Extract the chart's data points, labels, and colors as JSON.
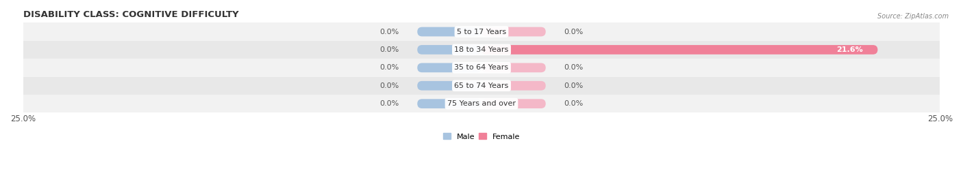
{
  "title": "DISABILITY CLASS: COGNITIVE DIFFICULTY",
  "source": "Source: ZipAtlas.com",
  "categories": [
    "5 to 17 Years",
    "18 to 34 Years",
    "35 to 64 Years",
    "65 to 74 Years",
    "75 Years and over"
  ],
  "male_values": [
    0.0,
    0.0,
    0.0,
    0.0,
    0.0
  ],
  "female_values": [
    0.0,
    21.6,
    0.0,
    0.0,
    0.0
  ],
  "xlim": 25.0,
  "male_color": "#a8c4e0",
  "female_color": "#f08098",
  "female_color_light": "#f4b8c8",
  "row_bg_light": "#f2f2f2",
  "row_bg_dark": "#e8e8e8",
  "bar_height": 0.52,
  "title_fontsize": 9.5,
  "label_fontsize": 8,
  "tick_fontsize": 8.5,
  "legend_male": "Male",
  "legend_female": "Female",
  "zero_bar_width": 3.5
}
